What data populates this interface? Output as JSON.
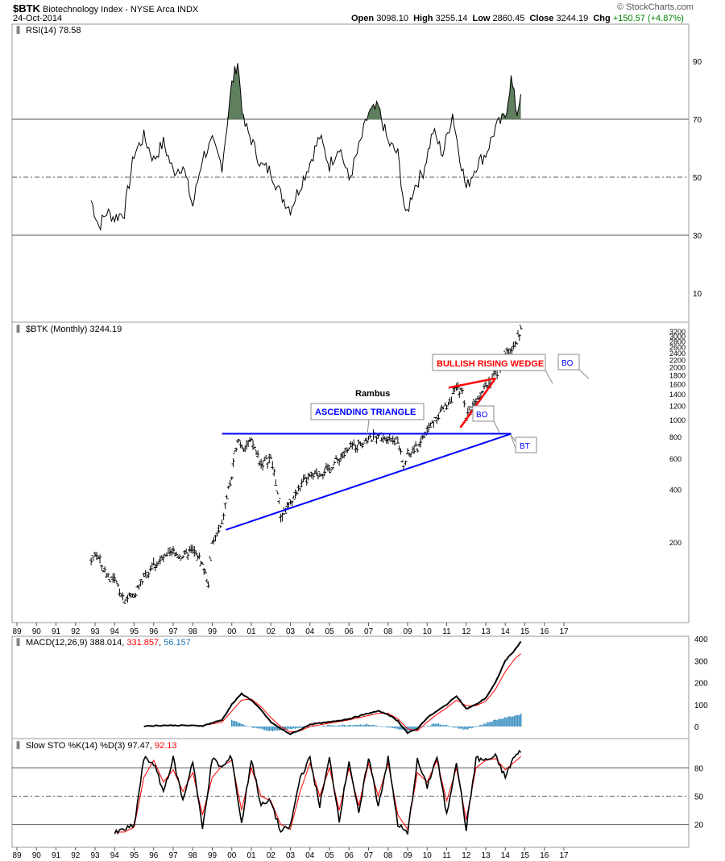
{
  "header": {
    "symbol": "$BTK",
    "description": "Biotechnology Index - NYSE Arca INDX",
    "date": "24-Oct-2014",
    "quote": {
      "open_label": "Open",
      "open": "3098.10",
      "high_label": "High",
      "high": "3255.14",
      "low_label": "Low",
      "low": "2860.45",
      "close_label": "Close",
      "close": "3244.19",
      "chg_label": "Chg",
      "chg": "+150.57 (+4.87%)",
      "chg_color": "#008000"
    },
    "watermark": "© StockCharts.com"
  },
  "panels": {
    "rsi": {
      "label": "RSI(14) 78.58"
    },
    "price": {
      "label": "$BTK (Monthly) 3244.19"
    },
    "macd": {
      "label": "MACD(12,26,9)",
      "v1": "388.014",
      "v2": "331.857",
      "v3": "56.157",
      "c1": "#000000",
      "c2": "#ff0000",
      "c3": "#1f78b4"
    },
    "sto": {
      "label": "Slow STO %K(14) %D(3)",
      "v1": "97.47",
      "v2": "92.13",
      "c1": "#000000",
      "c2": "#ff0000"
    }
  },
  "annotations": {
    "rambus": "Rambus",
    "ascending_triangle": "ASCENDING TRIANGLE",
    "bullish_rising_wedge": "BULLISH RISING WEDGE",
    "bo1": "BO",
    "bt": "BT",
    "bo2": "BO"
  },
  "colors": {
    "triangle": "#0000ff",
    "wedge": "#ff0000",
    "rsi_fill": "#5f7f5f",
    "histogram": "#3a8fc0"
  },
  "chart_data": [
    {
      "type": "line",
      "name": "RSI(14)",
      "x_axis_years": [
        "89",
        "90",
        "91",
        "92",
        "93",
        "94",
        "95",
        "96",
        "97",
        "98",
        "99",
        "00",
        "01",
        "02",
        "03",
        "04",
        "05",
        "06",
        "07",
        "08",
        "09",
        "10",
        "11",
        "12",
        "13",
        "14",
        "15",
        "16",
        "17"
      ],
      "y_ticks": [
        90,
        70,
        50,
        30,
        10
      ],
      "ylim": [
        0,
        100
      ],
      "reference_lines": [
        70,
        50,
        30
      ],
      "x": [
        1992.8,
        1993.2,
        1993.6,
        1994.0,
        1994.5,
        1995.0,
        1995.5,
        1996.0,
        1996.5,
        1997.0,
        1997.5,
        1998.0,
        1998.5,
        1999.0,
        1999.5,
        2000.0,
        2000.3,
        2000.6,
        2001.0,
        2001.5,
        2002.0,
        2002.5,
        2003.0,
        2003.5,
        2004.0,
        2004.5,
        2005.0,
        2005.5,
        2006.0,
        2006.5,
        2007.0,
        2007.5,
        2008.0,
        2008.5,
        2008.9,
        2009.3,
        2009.8,
        2010.3,
        2010.8,
        2011.3,
        2011.6,
        2012.0,
        2012.5,
        2013.0,
        2013.5,
        2014.0,
        2014.3,
        2014.6,
        2014.8
      ],
      "y": [
        42,
        33,
        38,
        36,
        38,
        58,
        64,
        56,
        62,
        52,
        54,
        40,
        57,
        62,
        54,
        82,
        90,
        69,
        63,
        54,
        52,
        44,
        39,
        47,
        55,
        64,
        54,
        61,
        49,
        60,
        72,
        74,
        62,
        58,
        36,
        46,
        52,
        66,
        58,
        72,
        60,
        46,
        54,
        58,
        67,
        71,
        84,
        72,
        78.58
      ]
    },
    {
      "type": "line",
      "name": "$BTK (Monthly)",
      "scale": "log",
      "y_ticks": [
        3200,
        3000,
        2800,
        2600,
        2400,
        2200,
        2000,
        1800,
        1600,
        1400,
        1200,
        1000,
        800,
        600,
        400,
        200
      ],
      "x": [
        1992.8,
        1993.0,
        1993.5,
        1994.0,
        1994.5,
        1995.0,
        1995.5,
        1996.0,
        1996.5,
        1997.0,
        1997.5,
        1998.0,
        1998.5,
        1998.8,
        1999.0,
        1999.5,
        2000.0,
        2000.3,
        2000.6,
        2001.0,
        2001.5,
        2002.0,
        2002.5,
        2003.0,
        2003.5,
        2004.0,
        2004.5,
        2005.0,
        2005.5,
        2006.0,
        2006.5,
        2007.0,
        2007.5,
        2008.0,
        2008.5,
        2008.8,
        2009.0,
        2009.5,
        2010.0,
        2010.5,
        2011.0,
        2011.5,
        2011.8,
        2012.0,
        2012.5,
        2013.0,
        2013.5,
        2014.0,
        2014.5,
        2014.8
      ],
      "y": [
        150,
        175,
        135,
        120,
        95,
        100,
        125,
        150,
        160,
        175,
        165,
        180,
        150,
        115,
        195,
        250,
        470,
        780,
        700,
        750,
        560,
        600,
        280,
        330,
        420,
        470,
        500,
        520,
        600,
        680,
        730,
        780,
        800,
        800,
        750,
        530,
        620,
        700,
        860,
        1050,
        1200,
        1500,
        1400,
        1050,
        1300,
        1600,
        1800,
        2300,
        2700,
        3244.19
      ]
    },
    {
      "type": "line",
      "name": "MACD(12,26,9)",
      "y_ticks": [
        400,
        300,
        200,
        100,
        0
      ],
      "series": [
        {
          "name": "MACD",
          "x": [
            1995.5,
            1996.5,
            1997.5,
            1998.5,
            1999.5,
            2000.0,
            2000.5,
            2001.0,
            2001.5,
            2002.0,
            2002.5,
            2003.0,
            2003.5,
            2004.0,
            2005.0,
            2006.0,
            2007.0,
            2007.5,
            2008.0,
            2008.5,
            2009.0,
            2009.5,
            2010.0,
            2010.5,
            2011.0,
            2011.5,
            2012.0,
            2012.5,
            2013.0,
            2013.5,
            2014.0,
            2014.5,
            2014.8
          ],
          "y": [
            2,
            5,
            5,
            3,
            30,
            100,
            150,
            120,
            75,
            20,
            -10,
            -35,
            -15,
            10,
            20,
            35,
            60,
            70,
            55,
            25,
            -30,
            -10,
            40,
            70,
            100,
            140,
            80,
            100,
            130,
            200,
            300,
            350,
            388.014
          ]
        },
        {
          "name": "Signal",
          "x": [
            1995.5,
            1996.5,
            1997.5,
            1998.5,
            1999.5,
            2000.0,
            2000.5,
            2001.0,
            2001.5,
            2002.0,
            2002.5,
            2003.0,
            2003.5,
            2004.0,
            2005.0,
            2006.0,
            2007.0,
            2007.5,
            2008.0,
            2008.5,
            2009.0,
            2009.5,
            2010.0,
            2010.5,
            2011.0,
            2011.5,
            2012.0,
            2012.5,
            2013.0,
            2013.5,
            2014.0,
            2014.5,
            2014.8
          ],
          "y": [
            2,
            4,
            5,
            4,
            20,
            70,
            120,
            125,
            90,
            40,
            0,
            -25,
            -20,
            0,
            15,
            30,
            50,
            60,
            60,
            35,
            -10,
            -20,
            20,
            55,
            85,
            120,
            95,
            95,
            115,
            170,
            250,
            310,
            331.857
          ]
        }
      ],
      "histogram": {
        "name": "Histogram",
        "x": [
          2000.0,
          2001.0,
          2002.0,
          2003.0,
          2005.0,
          2007.0,
          2009.0,
          2010.5,
          2012.0,
          2013.5,
          2014.8
        ],
        "y": [
          30,
          -5,
          -20,
          -10,
          5,
          10,
          -20,
          15,
          -15,
          30,
          56.157
        ]
      }
    },
    {
      "type": "line",
      "name": "Slow STO %K(14) %D(3)",
      "y_ticks": [
        80,
        50,
        20
      ],
      "reference_lines": [
        80,
        50,
        20
      ],
      "series": [
        {
          "name": "%K",
          "x": [
            1994.0,
            1994.5,
            1995.0,
            1995.5,
            1996.0,
            1996.5,
            1997.0,
            1997.5,
            1998.0,
            1998.5,
            1999.0,
            1999.5,
            2000.0,
            2000.5,
            2001.0,
            2001.5,
            2002.0,
            2002.5,
            2003.0,
            2003.5,
            2004.0,
            2004.5,
            2005.0,
            2005.5,
            2006.0,
            2006.5,
            2007.0,
            2007.5,
            2008.0,
            2008.5,
            2009.0,
            2009.5,
            2010.0,
            2010.5,
            2011.0,
            2011.5,
            2012.0,
            2012.5,
            2013.0,
            2013.5,
            2014.0,
            2014.4,
            2014.8
          ],
          "y": [
            10,
            15,
            18,
            90,
            85,
            55,
            90,
            45,
            88,
            15,
            90,
            80,
            92,
            20,
            90,
            40,
            45,
            12,
            18,
            70,
            90,
            40,
            90,
            25,
            88,
            30,
            92,
            40,
            90,
            20,
            10,
            88,
            60,
            92,
            30,
            88,
            15,
            90,
            88,
            92,
            70,
            90,
            97.47
          ]
        },
        {
          "name": "%D",
          "x": [
            1994.0,
            1994.5,
            1995.0,
            1995.5,
            1996.0,
            1996.5,
            1997.0,
            1997.5,
            1998.0,
            1998.5,
            1999.0,
            1999.5,
            2000.0,
            2000.5,
            2001.0,
            2001.5,
            2002.0,
            2002.5,
            2003.0,
            2003.5,
            2004.0,
            2004.5,
            2005.0,
            2005.5,
            2006.0,
            2006.5,
            2007.0,
            2007.5,
            2008.0,
            2008.5,
            2009.0,
            2009.5,
            2010.0,
            2010.5,
            2011.0,
            2011.5,
            2012.0,
            2012.5,
            2013.0,
            2013.5,
            2014.0,
            2014.4,
            2014.8
          ],
          "y": [
            12,
            12,
            17,
            70,
            88,
            65,
            78,
            55,
            75,
            30,
            70,
            82,
            88,
            35,
            80,
            50,
            45,
            20,
            15,
            55,
            85,
            50,
            80,
            35,
            80,
            40,
            85,
            50,
            85,
            30,
            15,
            75,
            65,
            88,
            45,
            80,
            25,
            80,
            88,
            90,
            78,
            85,
            92.13
          ]
        }
      ]
    }
  ]
}
